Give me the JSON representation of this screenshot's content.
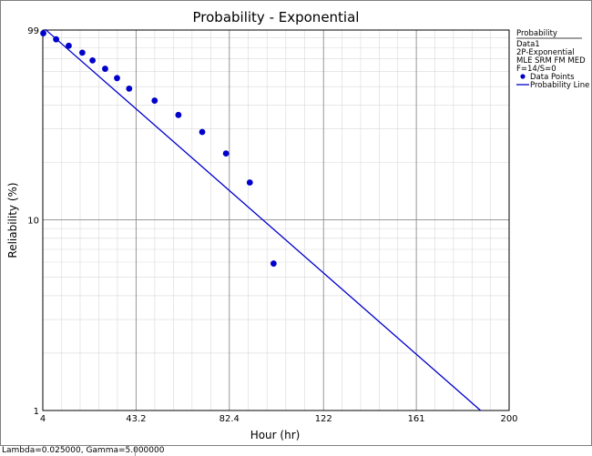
{
  "colors": {
    "series": "#0000cc",
    "grid_major": "#8c8c8c",
    "grid_minor": "#d9d9d9",
    "axis": "#000000"
  },
  "status_text": "Lambda=0.025000, Gamma=5.000000",
  "legend": {
    "header": "Probability",
    "lines": [
      "Data1",
      "2P-Exponential",
      "MLE SRM FM MED",
      "F=14/S=0"
    ],
    "data_points_label": "Data Points",
    "probability_line_label": "Probability Line"
  },
  "chart_data": {
    "type": "scatter",
    "title": "Probability - Exponential",
    "xlabel": "Hour (hr)",
    "ylabel": "Reliability (%)",
    "xlim": [
      4,
      200
    ],
    "ylim": [
      1,
      99
    ],
    "y_scale": "log",
    "x_tick_values": [
      4,
      43.2,
      82.4,
      122,
      161,
      200
    ],
    "x_tick_labels": [
      "4",
      "43.2",
      "82.4",
      "122",
      "161",
      "200"
    ],
    "y_tick_values": [
      99,
      10,
      1
    ],
    "y_tick_labels": [
      "99",
      "10",
      "1"
    ],
    "grid": true,
    "legend_position": "right",
    "series": [
      {
        "name": "Data Points",
        "kind": "points",
        "x": [
          4.2,
          9.6,
          14.9,
          20.6,
          24.9,
          30.2,
          35.2,
          40.3,
          51.0,
          61.0,
          71.0,
          81.0,
          91.0,
          101.0
        ],
        "y": [
          95.2,
          88.5,
          81.9,
          75.3,
          68.6,
          62.0,
          55.4,
          48.8,
          42.2,
          35.5,
          28.9,
          22.3,
          15.7,
          5.9
        ]
      },
      {
        "name": "Probability Line",
        "kind": "line",
        "x": [
          5,
          188
        ],
        "y": [
          99.9,
          1
        ]
      }
    ]
  }
}
